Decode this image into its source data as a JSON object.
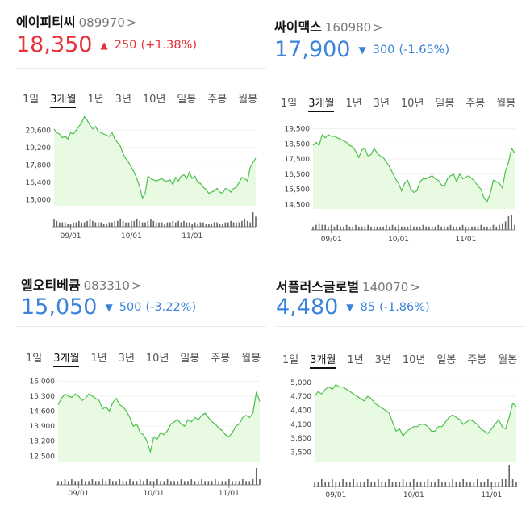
{
  "tabs": [
    "1일",
    "3개월",
    "1년",
    "3년",
    "10년",
    "일봉",
    "주봉",
    "월봉"
  ],
  "active_tab": "3개월",
  "colors": {
    "up": "#e8303a",
    "down": "#3c84d9",
    "line": "#4cbf4c",
    "fill": "#e9fae3",
    "volume": "#666666"
  },
  "stocks": [
    {
      "name": "에이피티씨",
      "code": "089970",
      "chevron": ">",
      "price": "18,350",
      "direction": "up",
      "arrow": "▲",
      "change": "250",
      "change_pct": "(+1.38%)",
      "chart_data": {
        "type": "line",
        "yticks": [
          "20,600",
          "19,200",
          "17,800",
          "16,400",
          "15,000"
        ],
        "ytick_values": [
          20600,
          19200,
          17800,
          16400,
          15000
        ],
        "ylim": [
          14500,
          21600
        ],
        "xticks": [
          "09/01",
          "10/01",
          "11/01"
        ],
        "xtick_positions": [
          6,
          28,
          50
        ],
        "values": [
          20700,
          20400,
          20300,
          20000,
          20100,
          19900,
          20400,
          20300,
          20600,
          20900,
          21200,
          21700,
          21400,
          21000,
          20700,
          20900,
          20500,
          20400,
          20300,
          20200,
          20100,
          20400,
          19900,
          19600,
          19300,
          18700,
          18300,
          18000,
          17600,
          17200,
          16700,
          16000,
          15100,
          15500,
          16900,
          16700,
          16600,
          16500,
          16600,
          16700,
          16500,
          16500,
          16600,
          16200,
          16800,
          16500,
          16900,
          17000,
          16700,
          17200,
          16700,
          16900,
          16400,
          16300,
          16000,
          15800,
          15500,
          15600,
          15700,
          15900,
          15600,
          15500,
          15900,
          15800,
          15600,
          15900,
          16000,
          16400,
          16800,
          16700,
          16500,
          17600,
          18000,
          18350
        ],
        "volume": [
          5,
          4,
          3,
          3,
          3,
          2,
          2,
          3,
          3,
          4,
          3,
          3,
          4,
          5,
          4,
          3,
          3,
          3,
          2,
          2,
          3,
          3,
          4,
          4,
          5,
          4,
          3,
          3,
          4,
          4,
          5,
          4,
          3,
          3,
          4,
          5,
          4,
          3,
          3,
          3,
          2,
          3,
          3,
          4,
          3,
          4,
          3,
          4,
          3,
          3,
          2,
          3,
          2,
          3,
          3,
          2,
          2,
          2,
          3,
          3,
          2,
          2,
          3,
          3,
          4,
          3,
          3,
          3,
          4,
          5,
          4,
          3,
          10,
          7
        ],
        "volume_max": 10
      }
    },
    {
      "name": "싸이맥스",
      "code": "160980",
      "chevron": ">",
      "price": "17,900",
      "direction": "down",
      "arrow": "▼",
      "change": "300",
      "change_pct": "(-1.65%)",
      "chart_data": {
        "type": "line",
        "yticks": [
          "19,500",
          "18,500",
          "17,500",
          "16,500",
          "15,500",
          "14,500"
        ],
        "ytick_values": [
          19500,
          18500,
          17500,
          16500,
          15500,
          14500
        ],
        "ylim": [
          14200,
          19900
        ],
        "xticks": [
          "09/01",
          "10/01",
          "11/01"
        ],
        "xtick_positions": [
          6,
          28,
          50
        ],
        "values": [
          18400,
          18600,
          18400,
          19100,
          18900,
          19100,
          19000,
          19000,
          18900,
          18800,
          18700,
          18600,
          18400,
          18300,
          18000,
          17600,
          18100,
          18200,
          17700,
          17800,
          18200,
          17900,
          17700,
          17600,
          17300,
          17000,
          16600,
          16200,
          15900,
          15400,
          15900,
          16100,
          15500,
          15300,
          15400,
          16000,
          16200,
          16200,
          16300,
          16400,
          16200,
          16100,
          15800,
          15700,
          16200,
          16400,
          16500,
          16000,
          16500,
          16200,
          16300,
          16400,
          16200,
          16000,
          15700,
          15500,
          14900,
          14700,
          15200,
          16100,
          16000,
          15900,
          15600,
          16700,
          17300,
          18200,
          17900
        ],
        "volume": [
          2,
          3,
          4,
          3,
          3,
          2,
          3,
          2,
          3,
          2,
          2,
          3,
          2,
          2,
          3,
          2,
          2,
          2,
          3,
          2,
          2,
          2,
          2,
          2,
          3,
          2,
          3,
          2,
          3,
          2,
          2,
          2,
          3,
          2,
          2,
          2,
          3,
          2,
          2,
          2,
          2,
          3,
          2,
          2,
          2,
          3,
          2,
          2,
          2,
          3,
          2,
          2,
          2,
          2,
          2,
          3,
          2,
          2,
          2,
          3,
          2,
          3,
          4,
          5,
          8,
          9,
          3
        ],
        "volume_max": 9
      }
    },
    {
      "name": "엘오티베큠",
      "code": "083310",
      "chevron": ">",
      "price": "15,050",
      "direction": "down",
      "arrow": "▼",
      "change": "500",
      "change_pct": "(-3.22%)",
      "chart_data": {
        "type": "line",
        "yticks": [
          "16,000",
          "15,300",
          "14,600",
          "13,900",
          "13,200",
          "12,500"
        ],
        "ytick_values": [
          16000,
          15300,
          14600,
          13900,
          13200,
          12500
        ],
        "ylim": [
          12250,
          16200
        ],
        "xticks": [
          "09/01",
          "10/01",
          "11/01"
        ],
        "xtick_positions": [
          6,
          28,
          50
        ],
        "values": [
          14900,
          15200,
          15400,
          15300,
          15250,
          15400,
          15300,
          15100,
          15200,
          15400,
          15300,
          15200,
          15100,
          14700,
          14800,
          14600,
          15000,
          15200,
          14900,
          14800,
          14600,
          14300,
          13900,
          14000,
          13600,
          13500,
          13200,
          12700,
          13400,
          13300,
          13600,
          13500,
          13700,
          14000,
          14100,
          14200,
          14000,
          13900,
          14200,
          14100,
          14300,
          14200,
          14400,
          14500,
          14300,
          14100,
          14000,
          13800,
          13700,
          13500,
          13400,
          13600,
          13900,
          14000,
          14300,
          14400,
          14300,
          14500,
          15500,
          15050
        ],
        "volume": [
          2,
          2,
          3,
          2,
          3,
          2,
          2,
          3,
          2,
          2,
          3,
          2,
          2,
          3,
          2,
          3,
          2,
          2,
          3,
          2,
          2,
          3,
          2,
          2,
          3,
          2,
          3,
          2,
          2,
          3,
          2,
          2,
          3,
          2,
          2,
          2,
          3,
          2,
          2,
          3,
          2,
          2,
          3,
          2,
          2,
          2,
          3,
          2,
          2,
          2,
          3,
          2,
          2,
          2,
          3,
          2,
          2,
          3,
          9,
          3
        ],
        "volume_max": 9
      }
    },
    {
      "name": "서플러스글로벌",
      "code": "140070",
      "chevron": ">",
      "price": "4,480",
      "direction": "down",
      "arrow": "▼",
      "change": "85",
      "change_pct": "(-1.86%)",
      "chart_data": {
        "type": "line",
        "yticks": [
          "5,000",
          "4,700",
          "4,400",
          "4,100",
          "3,800",
          "3,500"
        ],
        "ytick_values": [
          5000,
          4700,
          4400,
          4100,
          3800,
          3500
        ],
        "ylim": [
          3300,
          5100
        ],
        "xticks": [
          "09/01",
          "10/01",
          "11/01"
        ],
        "xtick_positions": [
          6,
          28,
          50
        ],
        "values": [
          4700,
          4800,
          4750,
          4850,
          4900,
          4850,
          4950,
          4900,
          4900,
          4850,
          4800,
          4750,
          4700,
          4650,
          4600,
          4700,
          4650,
          4550,
          4500,
          4450,
          4400,
          4350,
          4150,
          3950,
          4000,
          3850,
          3950,
          4000,
          4050,
          4050,
          4100,
          4100,
          4050,
          3950,
          3950,
          4050,
          4050,
          4150,
          4250,
          4300,
          4250,
          4200,
          4100,
          4150,
          4200,
          4150,
          4100,
          4000,
          3950,
          3900,
          4000,
          4100,
          4200,
          4050,
          4000,
          4250,
          4550,
          4480
        ],
        "volume": [
          2,
          2,
          3,
          2,
          2,
          3,
          2,
          2,
          3,
          2,
          2,
          3,
          2,
          2,
          2,
          3,
          2,
          2,
          3,
          2,
          2,
          3,
          2,
          2,
          2,
          3,
          2,
          2,
          3,
          2,
          2,
          2,
          3,
          2,
          2,
          3,
          2,
          2,
          2,
          3,
          2,
          2,
          3,
          2,
          2,
          2,
          3,
          2,
          2,
          3,
          2,
          2,
          2,
          3,
          3,
          9,
          3,
          2
        ],
        "volume_max": 9
      }
    }
  ]
}
